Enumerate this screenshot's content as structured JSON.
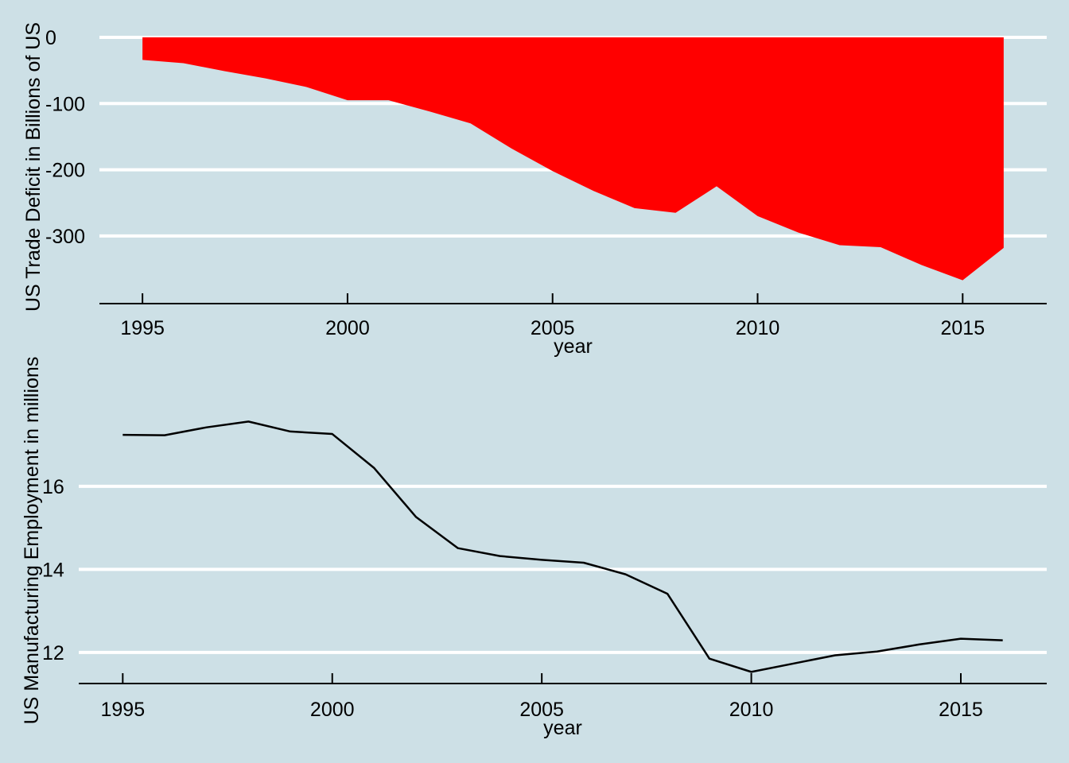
{
  "colors": {
    "background": "#cde0e6",
    "grid": "#ffffff",
    "area_fill": "#ff0000",
    "line": "#000000",
    "axis": "#000000"
  },
  "chart_data": [
    {
      "type": "area",
      "xlabel": "year",
      "ylabel": "US Trade Deficit in Billions of US",
      "grid": true,
      "xlim": [
        1993.95,
        2017.05
      ],
      "ylim": [
        -383,
        0
      ],
      "xticks": [
        1995,
        2000,
        2005,
        2010,
        2015
      ],
      "yticks": [
        0,
        -100,
        -200,
        -300
      ],
      "x": [
        1995,
        1996,
        1997,
        1998,
        1999,
        2000,
        2001,
        2002,
        2003,
        2004,
        2005,
        2006,
        2007,
        2008,
        2009,
        2010,
        2011,
        2012,
        2013,
        2014,
        2015,
        2016
      ],
      "values": [
        -34,
        -39,
        -51,
        -62,
        -75,
        -95,
        -95,
        -112,
        -130,
        -168,
        -202,
        -232,
        -258,
        -265,
        -225,
        -270,
        -295,
        -314,
        -317,
        -344,
        -367,
        -318
      ]
    },
    {
      "type": "line",
      "xlabel": "year",
      "ylabel": "US Manufacturing Employment in millions",
      "grid": true,
      "xlim": [
        1993.95,
        2017.05
      ],
      "ylim": [
        11.25,
        17.95
      ],
      "xticks": [
        1995,
        2000,
        2005,
        2010,
        2015
      ],
      "yticks": [
        12,
        14,
        16
      ],
      "x": [
        1995,
        1996,
        1997,
        1998,
        1999,
        2000,
        2001,
        2002,
        2003,
        2004,
        2005,
        2006,
        2007,
        2008,
        2009,
        2010,
        2011,
        2012,
        2013,
        2014,
        2015,
        2016
      ],
      "values": [
        17.24,
        17.23,
        17.42,
        17.56,
        17.32,
        17.26,
        16.44,
        15.26,
        14.51,
        14.32,
        14.23,
        14.16,
        13.88,
        13.41,
        11.85,
        11.53,
        11.73,
        11.93,
        12.02,
        12.19,
        12.33,
        12.29
      ]
    }
  ]
}
